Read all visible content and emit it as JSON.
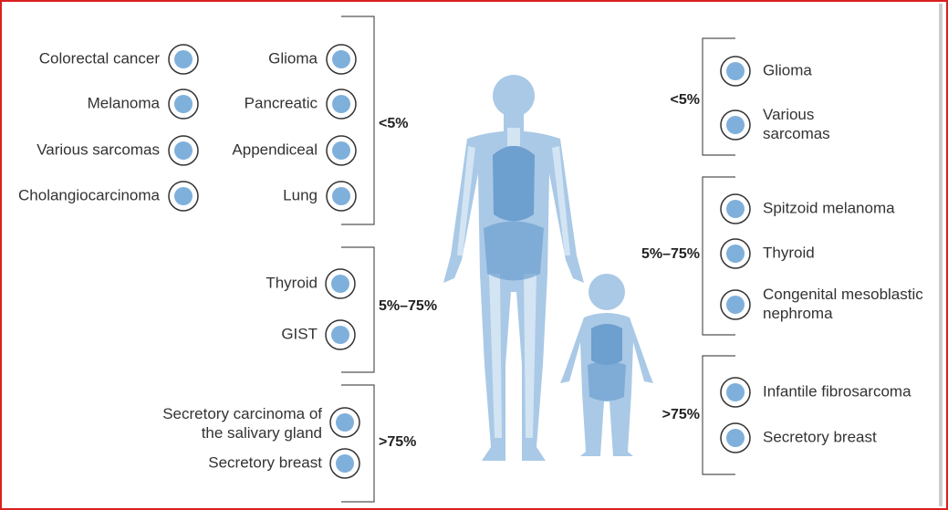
{
  "adult": {
    "groups": [
      {
        "range": "<5%",
        "items": [
          {
            "label": [
              "Colorectal cancer"
            ]
          },
          {
            "label": [
              "Melanoma"
            ]
          },
          {
            "label": [
              "Various sarcomas"
            ]
          },
          {
            "label": [
              "Cholangiocarcinoma"
            ]
          },
          {
            "label": [
              "Glioma"
            ]
          },
          {
            "label": [
              "Pancreatic"
            ]
          },
          {
            "label": [
              "Appendiceal"
            ]
          },
          {
            "label": [
              "Lung"
            ]
          }
        ]
      },
      {
        "range": "5%–75%",
        "items": [
          {
            "label": [
              "Thyroid"
            ]
          },
          {
            "label": [
              "GIST"
            ]
          }
        ]
      },
      {
        "range": ">75%",
        "items": [
          {
            "label": [
              "Secretory carcinoma of",
              "the salivary gland"
            ]
          },
          {
            "label": [
              "Secretory breast"
            ]
          }
        ]
      }
    ]
  },
  "child": {
    "groups": [
      {
        "range": "<5%",
        "items": [
          {
            "label": [
              "Glioma"
            ]
          },
          {
            "label": [
              "Various",
              "sarcomas"
            ]
          }
        ]
      },
      {
        "range": "5%–75%",
        "items": [
          {
            "label": [
              "Spitzoid melanoma"
            ]
          },
          {
            "label": [
              "Thyroid"
            ]
          },
          {
            "label": [
              "Congenital mesoblastic",
              "nephroma"
            ]
          }
        ]
      },
      {
        "range": ">75%",
        "items": [
          {
            "label": [
              "Infantile fibrosarcoma"
            ]
          },
          {
            "label": [
              "Secretory breast"
            ]
          }
        ]
      }
    ]
  }
}
